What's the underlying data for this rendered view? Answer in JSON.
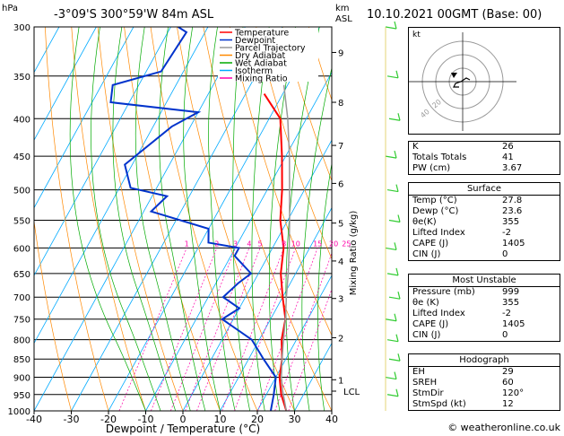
{
  "header": {
    "location": "-3°09'S  300°59'W  84m  ASL",
    "datetime": "10.10.2021  00GMT  (Base: 00)"
  },
  "axes": {
    "ylabel_left_unit": "hPa",
    "ylabel_right_unit_km": "km",
    "ylabel_right_unit_asl": "ASL",
    "xlabel": "Dewpoint / Temperature (°C)",
    "mixing_ratio_label": "Mixing Ratio (g/kg)",
    "lcl_label": "LCL"
  },
  "legend": [
    {
      "label": "Temperature",
      "color": "#ff0000"
    },
    {
      "label": "Dewpoint",
      "color": "#0033cc"
    },
    {
      "label": "Parcel Trajectory",
      "color": "#999999"
    },
    {
      "label": "Dry Adiabat",
      "color": "#ff8800"
    },
    {
      "label": "Wet Adiabat",
      "color": "#00aa00"
    },
    {
      "label": "Isotherm",
      "color": "#00aaff"
    },
    {
      "label": "Mixing Ratio",
      "color": "#ff00aa"
    }
  ],
  "chart_data": {
    "type": "line",
    "title": "",
    "pressure_levels": [
      300,
      350,
      400,
      450,
      500,
      550,
      600,
      650,
      700,
      750,
      800,
      850,
      900,
      950,
      1000
    ],
    "x_ticks": [
      -40,
      -30,
      -20,
      -10,
      0,
      10,
      20,
      30,
      40
    ],
    "xlim": [
      -40,
      40
    ],
    "ylim": [
      1000,
      300
    ],
    "km_ticks": [
      {
        "km": "1",
        "p": 907
      },
      {
        "km": "2",
        "p": 795
      },
      {
        "km": "3",
        "p": 703
      },
      {
        "km": "4",
        "p": 625
      },
      {
        "km": "5",
        "p": 555
      },
      {
        "km": "6",
        "p": 490
      },
      {
        "km": "7",
        "p": 435
      },
      {
        "km": "8",
        "p": 380
      },
      {
        "km": "9",
        "p": 325
      }
    ],
    "lcl_pressure": 940,
    "mixing_ratio_values": [
      "1",
      "2",
      "3",
      "4",
      "5",
      "8",
      "10",
      "15",
      "20",
      "25"
    ],
    "skew_deg_per_log": 0,
    "series": [
      {
        "name": "Temperature",
        "color": "#ff0000",
        "points": [
          [
            27.8,
            1000
          ],
          [
            24,
            950
          ],
          [
            21,
            900
          ],
          [
            19,
            850
          ],
          [
            16,
            800
          ],
          [
            14,
            750
          ],
          [
            10,
            700
          ],
          [
            6,
            650
          ],
          [
            3,
            600
          ],
          [
            -2,
            550
          ],
          [
            -6,
            500
          ],
          [
            -11,
            450
          ],
          [
            -17,
            400
          ],
          [
            -25,
            370
          ]
        ]
      },
      {
        "name": "Dewpoint",
        "color": "#0033cc",
        "points": [
          [
            23.6,
            1000
          ],
          [
            22,
            950
          ],
          [
            20,
            900
          ],
          [
            14,
            850
          ],
          [
            8,
            800
          ],
          [
            -3,
            750
          ],
          [
            0,
            725
          ],
          [
            -6,
            700
          ],
          [
            -4,
            670
          ],
          [
            -2,
            650
          ],
          [
            -9,
            615
          ],
          [
            -9,
            600
          ],
          [
            -18,
            590
          ],
          [
            -20,
            565
          ],
          [
            -38,
            535
          ],
          [
            -36,
            510
          ],
          [
            -47,
            497
          ],
          [
            -52,
            462
          ],
          [
            -45,
            410
          ],
          [
            -40,
            392
          ],
          [
            -65,
            380
          ],
          [
            -67,
            360
          ],
          [
            -56,
            345
          ],
          [
            -55,
            305
          ],
          [
            -58,
            300
          ]
        ]
      },
      {
        "name": "Parcel Trajectory",
        "color": "#999999",
        "points": [
          [
            27.8,
            1000
          ],
          [
            23.9,
            940
          ],
          [
            21.5,
            900
          ],
          [
            19,
            850
          ],
          [
            16.5,
            800
          ],
          [
            14,
            750
          ],
          [
            11,
            700
          ],
          [
            8,
            650
          ],
          [
            4.5,
            600
          ],
          [
            0.5,
            550
          ],
          [
            -4,
            500
          ],
          [
            -9,
            450
          ],
          [
            -15,
            400
          ],
          [
            -21,
            360
          ]
        ]
      }
    ]
  },
  "hodograph": {
    "label": "kt",
    "rings": [
      "20",
      "40"
    ]
  },
  "indices": [
    {
      "k": "K",
      "v": "26"
    },
    {
      "k": "Totals Totals",
      "v": "41"
    },
    {
      "k": "PW (cm)",
      "v": "3.67"
    }
  ],
  "surface": {
    "title": "Surface",
    "rows": [
      {
        "k": "Temp (°C)",
        "v": "27.8"
      },
      {
        "k": "Dewp (°C)",
        "v": "23.6"
      },
      {
        "k": "θe(K)",
        "v": "355"
      },
      {
        "k": "Lifted Index",
        "v": "-2"
      },
      {
        "k": "CAPE (J)",
        "v": "1405"
      },
      {
        "k": "CIN (J)",
        "v": "0"
      }
    ]
  },
  "most_unstable": {
    "title": "Most Unstable",
    "rows": [
      {
        "k": "Pressure (mb)",
        "v": "999"
      },
      {
        "k": "θe (K)",
        "v": "355"
      },
      {
        "k": "Lifted Index",
        "v": "-2"
      },
      {
        "k": "CAPE (J)",
        "v": "1405"
      },
      {
        "k": "CIN (J)",
        "v": "0"
      }
    ]
  },
  "hodograph_table": {
    "title": "Hodograph",
    "rows": [
      {
        "k": "EH",
        "v": "29"
      },
      {
        "k": "SREH",
        "v": "60"
      },
      {
        "k": "StmDir",
        "v": "120°"
      },
      {
        "k": "StmSpd (kt)",
        "v": "12"
      }
    ]
  },
  "footer": {
    "text": "© weatheronline.co.uk"
  }
}
